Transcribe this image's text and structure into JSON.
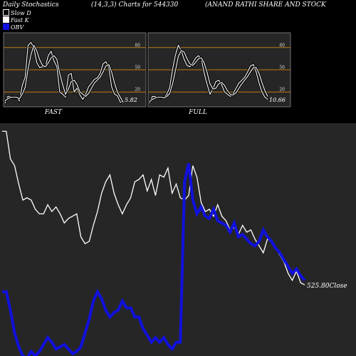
{
  "header": {
    "title": "Daily Stochastics",
    "params": "(14,3,3) Charts for 544330",
    "company": "(ANAND RATHI SHARE AND STOCK"
  },
  "legend": {
    "slow_d": "Slow  D",
    "fast_k": "Fast K",
    "obv": "OBV"
  },
  "colors": {
    "panel_bg": "#262626",
    "grid": "#c07a14",
    "line": "#ffffff",
    "obv": "#1111dd"
  },
  "chart_data": [
    {
      "type": "line",
      "panel": "fast",
      "xlabel": "FAST",
      "ylim": [
        0,
        100
      ],
      "yticks": [
        20,
        50,
        80
      ],
      "last_label": "5.82",
      "series": [
        {
          "name": "Fast K",
          "values": [
            5,
            14,
            14,
            12,
            13,
            8,
            29,
            40,
            83,
            87,
            80,
            60,
            53,
            54,
            54,
            69,
            75,
            62,
            54,
            20,
            17,
            13,
            43,
            45,
            20,
            25,
            16,
            10,
            17,
            27,
            32,
            37,
            39,
            45,
            58,
            61,
            53,
            27,
            17,
            15,
            6,
            8
          ]
        },
        {
          "name": "Slow  D",
          "values": [
            8,
            11,
            13,
            13,
            13,
            11,
            17,
            26,
            51,
            70,
            83,
            76,
            64,
            56,
            54,
            59,
            66,
            69,
            64,
            45,
            30,
            17,
            24,
            34,
            36,
            30,
            20,
            17,
            14,
            18,
            25,
            32,
            36,
            40,
            47,
            55,
            57,
            47,
            32,
            20,
            13,
            6
          ]
        }
      ]
    },
    {
      "type": "line",
      "panel": "full",
      "xlabel": "FULL",
      "ylim": [
        0,
        100
      ],
      "yticks": [
        20,
        50,
        80
      ],
      "last_label": "10.66",
      "series": [
        {
          "name": "Fast K",
          "values": [
            5,
            14,
            14,
            12,
            12,
            12,
            17,
            26,
            51,
            70,
            83,
            76,
            64,
            56,
            54,
            59,
            66,
            69,
            64,
            45,
            30,
            17,
            24,
            34,
            36,
            30,
            20,
            17,
            14,
            18,
            25,
            32,
            36,
            40,
            47,
            55,
            57,
            47,
            32,
            20,
            13,
            10
          ]
        },
        {
          "name": "Slow  D",
          "values": [
            7,
            10,
            12,
            13,
            13,
            12,
            14,
            18,
            31,
            49,
            68,
            76,
            74,
            65,
            58,
            56,
            60,
            65,
            66,
            59,
            46,
            31,
            24,
            25,
            31,
            33,
            29,
            22,
            17,
            16,
            19,
            25,
            31,
            36,
            41,
            47,
            53,
            53,
            45,
            33,
            22,
            14
          ]
        }
      ]
    },
    {
      "type": "line",
      "panel": "price",
      "last_label": "525.80",
      "last_label_suffix": "Close",
      "ylim": [
        0,
        1
      ],
      "series": [
        {
          "name": "Close",
          "values": [
            0.98,
            0.98,
            0.86,
            0.83,
            0.75,
            0.68,
            0.69,
            0.68,
            0.64,
            0.62,
            0.62,
            0.66,
            0.63,
            0.65,
            0.62,
            0.58,
            0.6,
            0.61,
            0.62,
            0.52,
            0.49,
            0.5,
            0.57,
            0.63,
            0.71,
            0.76,
            0.79,
            0.71,
            0.66,
            0.62,
            0.66,
            0.69,
            0.76,
            0.77,
            0.79,
            0.72,
            0.77,
            0.7,
            0.79,
            0.78,
            0.82,
            0.71,
            0.75,
            0.69,
            0.68,
            0.7,
            0.83,
            0.78,
            0.67,
            0.63,
            0.64,
            0.61,
            0.66,
            0.61,
            0.59,
            0.55,
            0.56,
            0.53,
            0.57,
            0.54,
            0.55,
            0.51,
            0.48,
            0.45,
            0.51,
            0.5,
            0.47,
            0.44,
            0.41,
            0.36,
            0.33,
            0.37,
            0.32,
            0.31
          ]
        },
        {
          "name": "OBV",
          "values": [
            0.28,
            0.28,
            0.2,
            0.1,
            0.04,
            0.0,
            -0.01,
            0.02,
            0.0,
            0.02,
            0.05,
            0.08,
            0.06,
            0.03,
            0.04,
            0.05,
            0.03,
            0.01,
            0.02,
            0.04,
            0.1,
            0.16,
            0.24,
            0.28,
            0.25,
            0.2,
            0.17,
            0.19,
            0.2,
            0.24,
            0.21,
            0.21,
            0.17,
            0.17,
            0.12,
            0.09,
            0.06,
            0.08,
            0.06,
            0.08,
            0.05,
            0.03,
            0.06,
            0.06,
            0.76,
            0.84,
            0.68,
            0.62,
            0.65,
            0.61,
            0.6,
            0.64,
            0.59,
            0.58,
            0.57,
            0.54,
            0.58,
            0.52,
            0.53,
            0.51,
            0.49,
            0.48,
            0.5,
            0.55,
            0.52,
            0.5,
            0.47,
            0.45,
            0.42,
            0.39,
            0.36,
            0.38,
            0.35,
            0.33
          ]
        }
      ]
    }
  ]
}
